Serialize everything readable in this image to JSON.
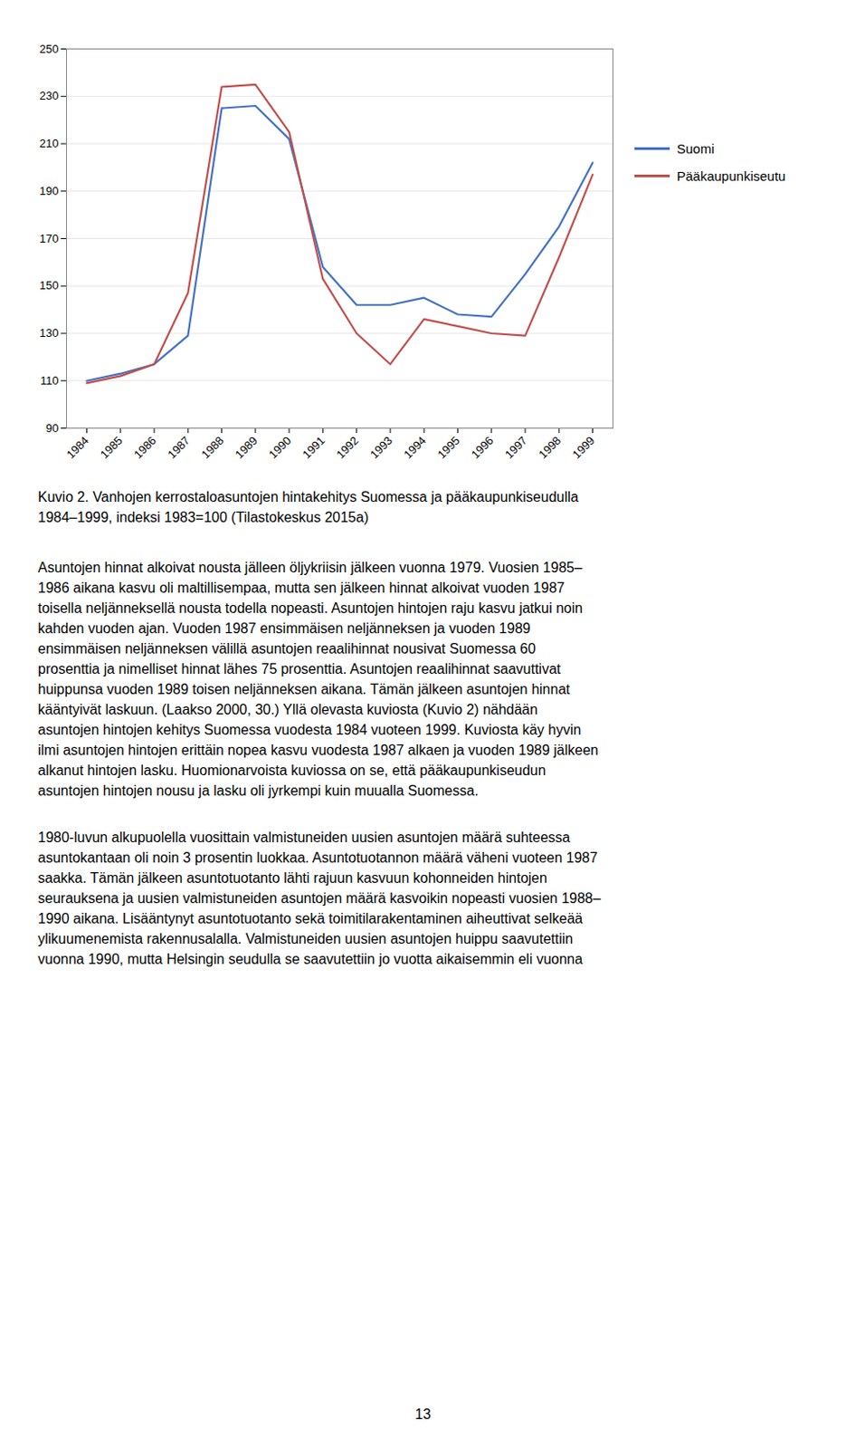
{
  "chart_data": {
    "type": "line",
    "x": [
      1984,
      1985,
      1986,
      1987,
      1988,
      1989,
      1990,
      1991,
      1992,
      1993,
      1994,
      1995,
      1996,
      1997,
      1998,
      1999
    ],
    "series": [
      {
        "name": "Suomi",
        "color": "#4472C4",
        "values": [
          110,
          113,
          117,
          129,
          225,
          226,
          212,
          158,
          142,
          142,
          145,
          138,
          137,
          155,
          175,
          202
        ]
      },
      {
        "name": "Pääkaupunkiseutu",
        "color": "#C0504D",
        "values": [
          109,
          112,
          117,
          147,
          234,
          235,
          215,
          153,
          130,
          117,
          136,
          133,
          130,
          129,
          162,
          197
        ]
      }
    ],
    "xlim": [
      1983.4,
      1999.6
    ],
    "xticks": [
      1984,
      1985,
      1986,
      1987,
      1988,
      1989,
      1990,
      1991,
      1992,
      1993,
      1994,
      1995,
      1996,
      1997,
      1998,
      1999
    ],
    "ylim": [
      90,
      250
    ],
    "yticks": [
      90,
      110,
      130,
      150,
      170,
      190,
      210,
      230,
      250
    ],
    "grid": "y",
    "legend": "right"
  },
  "caption": [
    "Kuvio 2. Vanhojen kerrostaloasuntojen hintakehitys Suomessa ja pääkaupunkiseudulla",
    "1984–1999, indeksi 1983=100 (Tilastokeskus 2015a)"
  ],
  "paragraphs": [
    [
      "Asuntojen hinnat alkoivat nousta jälleen öljykriisin jälkeen vuonna 1979. Vuosien 1985–",
      "1986 aikana kasvu oli maltillisempaa, mutta sen jälkeen hinnat alkoivat vuoden 1987",
      "toisella neljänneksellä nousta todella nopeasti. Asuntojen hintojen raju kasvu jatkui noin",
      "kahden vuoden ajan. Vuoden 1987 ensimmäisen neljänneksen ja vuoden 1989",
      "ensimmäisen neljänneksen välillä asuntojen reaalihinnat nousivat Suomessa 60",
      "prosenttia ja nimelliset hinnat lähes 75 prosenttia. Asuntojen reaalihinnat saavuttivat",
      "huippunsa vuoden 1989 toisen neljänneksen aikana. Tämän jälkeen asuntojen hinnat",
      "kääntyivät laskuun. (Laakso 2000, 30.) Yllä olevasta kuviosta (Kuvio 2) nähdään",
      "asuntojen hintojen kehitys Suomessa vuodesta 1984 vuoteen 1999. Kuviosta käy hyvin",
      "ilmi asuntojen hintojen erittäin nopea kasvu vuodesta 1987 alkaen ja vuoden 1989 jälkeen",
      "alkanut hintojen lasku. Huomionarvoista kuviossa on se, että pääkaupunkiseudun",
      "asuntojen hintojen nousu ja lasku oli jyrkempi kuin muualla Suomessa."
    ],
    [
      "1980-luvun alkupuolella vuosittain valmistuneiden uusien asuntojen määrä suhteessa",
      "asuntokantaan oli noin 3 prosentin luokkaa. Asuntotuotannon määrä väheni vuoteen 1987",
      "saakka. Tämän jälkeen asuntotuotanto lähti rajuun kasvuun kohonneiden hintojen",
      "seurauksena ja uusien valmistuneiden asuntojen määrä kasvoikin nopeasti vuosien 1988–",
      "1990 aikana. Lisääntynyt asuntotuotanto sekä toimitilarakentaminen aiheuttivat selkeää",
      "ylikuumenemista rakennusalalla. Valmistuneiden uusien asuntojen huippu saavutettiin",
      "vuonna 1990, mutta Helsingin seudulla se saavutettiin jo vuotta aikaisemmin eli vuonna"
    ]
  ],
  "page_number": "13"
}
